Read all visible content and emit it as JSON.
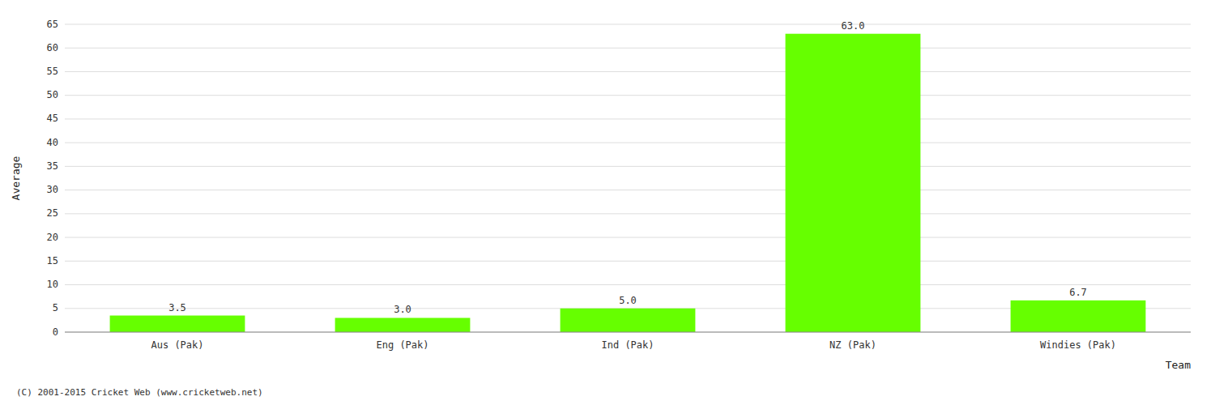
{
  "chart_data": {
    "type": "bar",
    "categories": [
      "Aus (Pak)",
      "Eng (Pak)",
      "Ind (Pak)",
      "NZ (Pak)",
      "Windies (Pak)"
    ],
    "values": [
      3.5,
      3.0,
      5.0,
      63.0,
      6.7
    ],
    "value_labels": [
      "3.5",
      "3.0",
      "5.0",
      "63.0",
      "6.7"
    ],
    "data_labels": true,
    "color": "#66ff00",
    "xlabel": "Team",
    "ylabel": "Average",
    "ylim": [
      0,
      65
    ],
    "yticks": [
      0,
      5,
      10,
      15,
      20,
      25,
      30,
      35,
      40,
      45,
      50,
      55,
      60,
      65
    ],
    "grid": true,
    "annotations": [
      "(C) 2001-2015 Cricket Web (www.cricketweb.net)"
    ]
  }
}
